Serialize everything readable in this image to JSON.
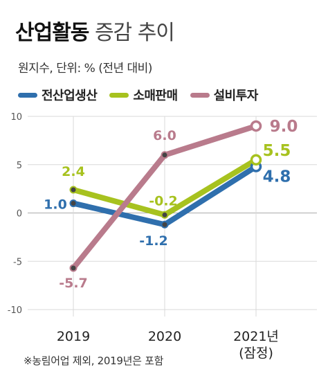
{
  "header": {
    "title_bold": "산업활동",
    "title_light": "증감 추이",
    "subtitle": "원지수, 단위: % (전년 대비)"
  },
  "legend": [
    {
      "label": "전산업생산",
      "color": "#2f6fad"
    },
    {
      "label": "소매판매",
      "color": "#a7c21f"
    },
    {
      "label": "설비투자",
      "color": "#b97b8c"
    }
  ],
  "chart_data": {
    "type": "line",
    "categories": [
      "2019",
      "2020",
      "2021년\n(잠정)"
    ],
    "ylim": [
      -10,
      10
    ],
    "yticks": [
      -10,
      -5,
      0,
      5,
      10
    ],
    "grid": true,
    "series": [
      {
        "name": "전산업생산",
        "values": [
          1.0,
          -1.2,
          4.8
        ],
        "labels": [
          "1.0",
          "-1.2",
          "4.8"
        ],
        "color": "#2f6fad"
      },
      {
        "name": "소매판매",
        "values": [
          2.4,
          -0.2,
          5.5
        ],
        "labels": [
          "2.4",
          "-0.2",
          "5.5"
        ],
        "color": "#a7c21f"
      },
      {
        "name": "설비투자",
        "values": [
          -5.7,
          6.0,
          9.0
        ],
        "labels": [
          "-5.7",
          "6.0",
          "9.0"
        ],
        "color": "#b97b8c"
      }
    ]
  },
  "footer": {
    "source": "※농림어업 제외, 2019년은 포함"
  }
}
